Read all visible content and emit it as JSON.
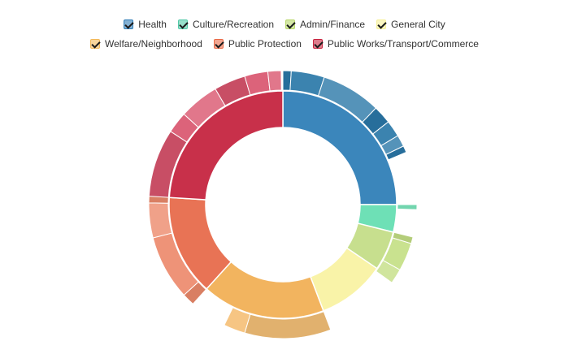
{
  "chart_data": {
    "type": "sunburst",
    "legend": {
      "items": [
        {
          "label": "Health",
          "color": "#2e7cb6",
          "checked": true
        },
        {
          "label": "Culture/Recreation",
          "color": "#52c9a7",
          "checked": true
        },
        {
          "label": "Admin/Finance",
          "color": "#b7d769",
          "checked": true
        },
        {
          "label": "General City",
          "color": "#f6f098",
          "checked": true
        },
        {
          "label": "Welfare/Neighborhood",
          "color": "#f3b95a",
          "checked": true
        },
        {
          "label": "Public Protection",
          "color": "#ea6a47",
          "checked": true
        },
        {
          "label": "Public Works/Transport/Commerce",
          "color": "#c8243f",
          "checked": true
        }
      ]
    },
    "inner_ring": [
      {
        "group": "Health",
        "value": 25.0,
        "color": "#3b86bb"
      },
      {
        "group": "Culture/Recreation",
        "value": 3.9,
        "color": "#6ee0b6"
      },
      {
        "group": "Admin/Finance",
        "value": 5.6,
        "color": "#c7df8e"
      },
      {
        "group": "General City",
        "value": 9.7,
        "color": "#f9f3a8"
      },
      {
        "group": "Welfare/Neighborhood",
        "value": 17.5,
        "color": "#f2b45f"
      },
      {
        "group": "Public Protection",
        "value": 14.3,
        "color": "#e87355"
      },
      {
        "group": "Public Works/Transport/Commerce",
        "value": 24.0,
        "color": "#c8304a"
      }
    ],
    "outer_ring": [
      {
        "group": "Health",
        "values": [
          1.0,
          4.0,
          7.2,
          2.2,
          2.0,
          1.4,
          0.8
        ],
        "color": "#2a78a8"
      },
      {
        "group": "Culture/Recreation",
        "values": [
          0.6
        ],
        "color": "#7ce8bd"
      },
      {
        "group": "Admin/Finance",
        "values": [
          0.8,
          3.4,
          1.8
        ],
        "color": "#c4df85"
      },
      {
        "group": "General City",
        "values": [],
        "color": "#f9f3a8"
      },
      {
        "group": "Welfare/Neighborhood",
        "values": [
          10.4,
          2.6
        ],
        "color": "#f5c078"
      },
      {
        "group": "Public Protection",
        "values": [
          1.5,
          7.8,
          4.2,
          1.4
        ],
        "color": "#ec8a6c"
      },
      {
        "group": "Public Works/Transport/Commerce",
        "values": [
          8.2,
          2.6,
          4.8,
          3.8,
          2.8,
          1.6
        ],
        "color": "#d9556e"
      }
    ]
  }
}
